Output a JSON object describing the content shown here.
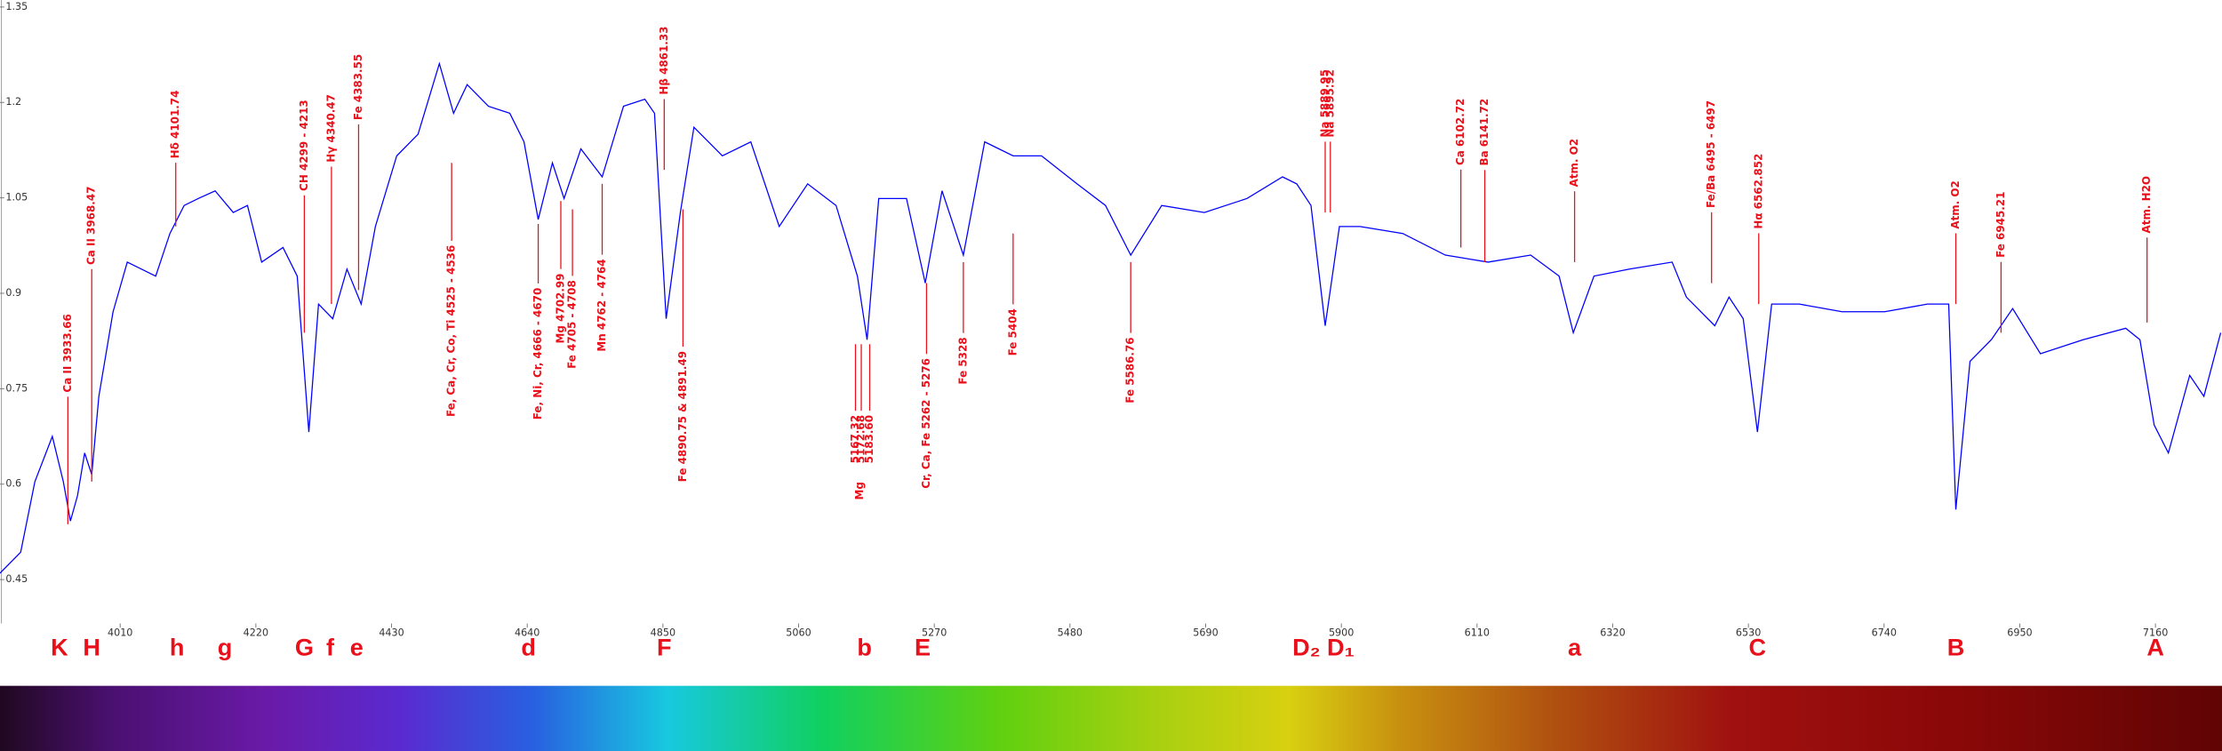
{
  "chart_data": {
    "type": "line",
    "color": "#0000ff",
    "annotation_color": "#e8101a",
    "xlim": [
      3824,
      7263
    ],
    "ylim": [
      0.381,
      1.361
    ],
    "xticks": [
      4010,
      4220,
      4430,
      4640,
      4850,
      5060,
      5270,
      5480,
      5690,
      5900,
      6110,
      6320,
      6530,
      6740,
      6950,
      7160
    ],
    "yticks": [
      1.35,
      1.2,
      1.05,
      0.9,
      0.75,
      0.6,
      0.45
    ],
    "x": [
      3824,
      3856,
      3878,
      3905,
      3922,
      3933,
      3944,
      3955,
      3966,
      3977,
      3999,
      4021,
      4043,
      4065,
      4087,
      4109,
      4131,
      4157,
      4185,
      4207,
      4229,
      4262,
      4284,
      4302,
      4317,
      4339,
      4361,
      4383,
      4405,
      4438,
      4471,
      4504,
      4526,
      4547,
      4580,
      4613,
      4635,
      4657,
      4679,
      4697,
      4723,
      4756,
      4789,
      4822,
      4837,
      4855,
      4877,
      4898,
      4942,
      4986,
      5030,
      5074,
      5118,
      5151,
      5166,
      5184,
      5227,
      5256,
      5282,
      5315,
      5348,
      5392,
      5436,
      5491,
      5535,
      5574,
      5622,
      5688,
      5754,
      5809,
      5831,
      5853,
      5875,
      5897,
      5929,
      5995,
      6061,
      6127,
      6193,
      6237,
      6259,
      6291,
      6346,
      6412,
      6434,
      6478,
      6500,
      6522,
      6544,
      6566,
      6609,
      6675,
      6741,
      6807,
      6840,
      6851,
      6873,
      6906,
      6939,
      6982,
      7048,
      7114,
      7136,
      7158,
      7180,
      7213,
      7235,
      7261
    ],
    "values": [
      0.46,
      0.493,
      0.604,
      0.675,
      0.604,
      0.542,
      0.582,
      0.649,
      0.615,
      0.738,
      0.871,
      0.949,
      0.938,
      0.927,
      0.994,
      1.038,
      1.049,
      1.061,
      1.027,
      1.038,
      0.949,
      0.972,
      0.927,
      0.682,
      0.883,
      0.86,
      0.938,
      0.883,
      1.005,
      1.116,
      1.15,
      1.261,
      1.183,
      1.228,
      1.194,
      1.183,
      1.138,
      1.016,
      1.105,
      1.049,
      1.127,
      1.083,
      1.194,
      1.205,
      1.183,
      0.86,
      1.027,
      1.161,
      1.116,
      1.138,
      1.005,
      1.072,
      1.038,
      0.927,
      0.827,
      1.049,
      1.049,
      0.916,
      1.061,
      0.96,
      1.138,
      1.116,
      1.116,
      1.072,
      1.038,
      0.96,
      1.038,
      1.027,
      1.049,
      1.083,
      1.072,
      1.038,
      0.849,
      1.005,
      1.005,
      0.994,
      0.96,
      0.949,
      0.96,
      0.927,
      0.838,
      0.927,
      0.938,
      0.949,
      0.894,
      0.849,
      0.894,
      0.86,
      0.682,
      0.883,
      0.883,
      0.871,
      0.871,
      0.883,
      0.883,
      0.56,
      0.793,
      0.827,
      0.876,
      0.805,
      0.827,
      0.845,
      0.827,
      0.693,
      0.649,
      0.771,
      0.738,
      0.838
    ],
    "annotations": [
      {
        "text": "Ca II 3933.66",
        "x": 3929,
        "y": 0.537,
        "placement": "above"
      },
      {
        "text": "Ca II 3968.47",
        "x": 3966,
        "y": 0.604,
        "placement": "above"
      },
      {
        "text": "Hδ 4101.74",
        "x": 4096,
        "y": 1.005,
        "placement": "above"
      },
      {
        "text": "CH 4299 - 4213",
        "x": 4295,
        "y": 0.838,
        "placement": "above"
      },
      {
        "text": "Hγ 4340.47",
        "x": 4337,
        "y": 0.883,
        "placement": "above"
      },
      {
        "text": "Fe 4383.55",
        "x": 4379,
        "y": 0.905,
        "placement": "above"
      },
      {
        "text": "Fe, Ca, Cr, Co, Ti 4525 - 4536",
        "x": 4523,
        "y": 1.105,
        "placement": "below"
      },
      {
        "text": "Fe, Ni, Cr, 4666 - 4670",
        "x": 4657,
        "y": 1.009,
        "placement": "below"
      },
      {
        "text": "Mg 4702.99",
        "x": 4692,
        "y": 1.045,
        "placement": "below"
      },
      {
        "text": "Fe 4705 - 4708",
        "x": 4710,
        "y": 1.032,
        "placement": "below"
      },
      {
        "text": "Mn 4762 - 4764",
        "x": 4756,
        "y": 1.072,
        "placement": "below"
      },
      {
        "text": "Hβ 4861.33",
        "x": 4852,
        "y": 1.094,
        "placement": "above"
      },
      {
        "text": "Fe 4890.75 & 4891.49",
        "x": 4881,
        "y": 1.032,
        "placement": "below"
      },
      {
        "text": "5167.32",
        "x": 5148,
        "y": 0.82,
        "placement": "below"
      },
      {
        "text": "5172.68",
        "x": 5157,
        "y": 0.82,
        "placement": "below"
      },
      {
        "text": "5183.60",
        "x": 5170,
        "y": 0.82,
        "placement": "below"
      },
      {
        "text": "Cr, Ca, Fe 5262 - 5276",
        "x": 5258,
        "y": 0.916,
        "placement": "below"
      },
      {
        "text": "Fe 5328",
        "x": 5315,
        "y": 0.949,
        "placement": "below"
      },
      {
        "text": "Fe 5404",
        "x": 5392,
        "y": 0.994,
        "placement": "below"
      },
      {
        "text": "Fe 5586.76",
        "x": 5574,
        "y": 0.949,
        "placement": "below"
      },
      {
        "text": "Na 5889.95",
        "x": 5875,
        "y": 1.027,
        "placement": "above"
      },
      {
        "text": "Na 5895.92",
        "x": 5883,
        "y": 1.027,
        "placement": "above"
      },
      {
        "text": "Ca 6102.72",
        "x": 6085,
        "y": 0.972,
        "placement": "above"
      },
      {
        "text": "Ba 6141.72",
        "x": 6122,
        "y": 0.949,
        "placement": "above"
      },
      {
        "text": "Atm. O2",
        "x": 6261,
        "y": 0.949,
        "placement": "above"
      },
      {
        "text": "Fe/Ba 6495 - 6497",
        "x": 6473,
        "y": 0.916,
        "placement": "above"
      },
      {
        "text": "Hα 6562.852",
        "x": 6546,
        "y": 0.883,
        "placement": "above"
      },
      {
        "text": "Atm. O2",
        "x": 6851,
        "y": 0.883,
        "placement": "above"
      },
      {
        "text": "Fe 6945.21",
        "x": 6921,
        "y": 0.838,
        "placement": "above"
      },
      {
        "text": "Atm. H2O",
        "x": 7147,
        "y": 0.854,
        "placement": "above"
      }
    ],
    "group_labels": [
      {
        "text": "Mg",
        "x": 5155
      }
    ],
    "fraunhofer_lines": [
      {
        "label": "K",
        "x": 3916
      },
      {
        "label": "H",
        "x": 3966
      },
      {
        "label": "h",
        "x": 4098
      },
      {
        "label": "g",
        "x": 4172
      },
      {
        "label": "G",
        "x": 4295
      },
      {
        "label": "f",
        "x": 4335
      },
      {
        "label": "e",
        "x": 4376
      },
      {
        "label": "d",
        "x": 4642
      },
      {
        "label": "F",
        "x": 4852
      },
      {
        "label": "b",
        "x": 5162
      },
      {
        "label": "E",
        "x": 5252
      },
      {
        "label": "D₂",
        "x": 5846
      },
      {
        "label": "D₁",
        "x": 5899
      },
      {
        "label": "a",
        "x": 6261
      },
      {
        "label": "C",
        "x": 6544
      },
      {
        "label": "B",
        "x": 6851
      },
      {
        "label": "A",
        "x": 7160
      }
    ]
  }
}
